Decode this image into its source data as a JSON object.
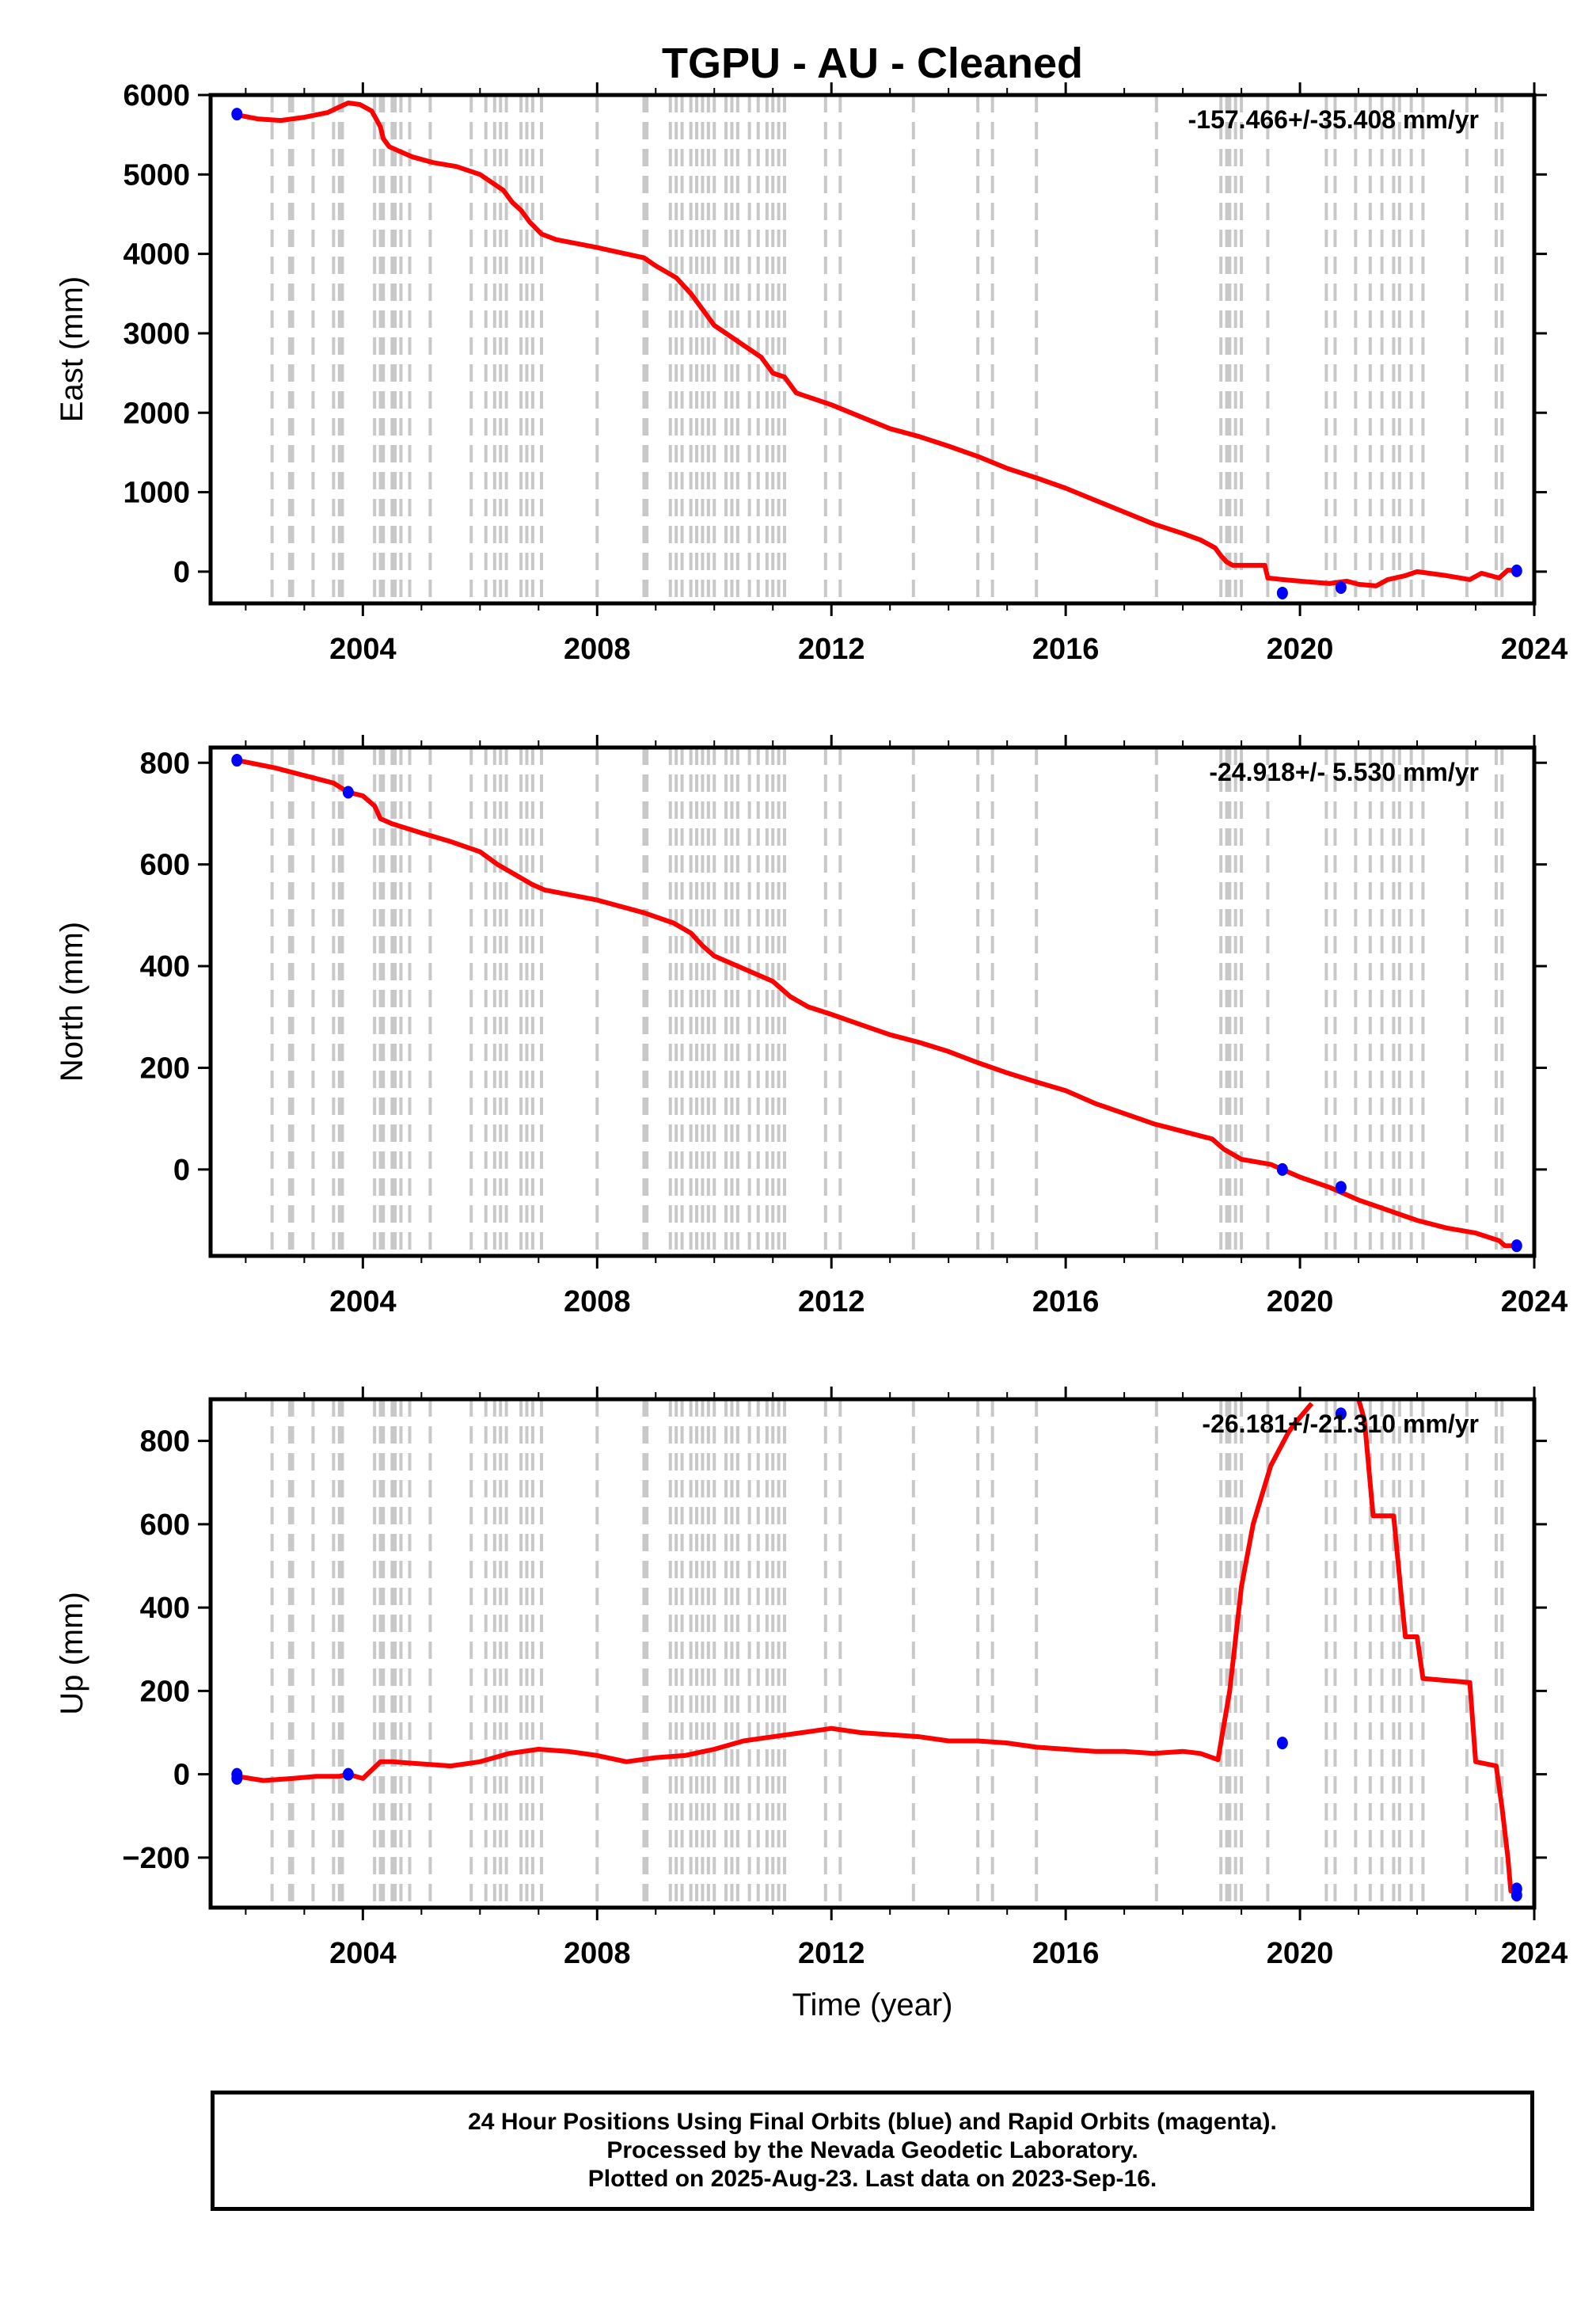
{
  "title": "TGPU  - AU - Cleaned",
  "chart_data": [
    {
      "type": "line",
      "panel": "east",
      "ylabel": "East (mm)",
      "xlabel": "",
      "rate": "-157.466+/-35.408 mm/yr",
      "xlim": [
        2001.4,
        2024.0
      ],
      "ylim": [
        -400,
        6000
      ],
      "yticks": [
        0,
        1000,
        2000,
        3000,
        4000,
        5000,
        6000
      ],
      "xticks": [
        2004,
        2008,
        2012,
        2016,
        2020,
        2024
      ],
      "series": [
        {
          "color": "#ff0000",
          "x": [
            2001.85,
            2002.2,
            2002.6,
            2003.0,
            2003.4,
            2003.6,
            2003.75,
            2003.95,
            2004.15,
            2004.3,
            2004.35,
            2004.45,
            2004.6,
            2004.85,
            2005.2,
            2005.6,
            2006.0,
            2006.2,
            2006.4,
            2006.55,
            2006.7,
            2006.85,
            2007.05,
            2007.3,
            2008.0,
            2008.8,
            2009.0,
            2009.35,
            2009.6,
            2009.8,
            2010.0,
            2010.2,
            2010.5,
            2010.8,
            2011.0,
            2011.2,
            2011.4,
            2011.6,
            2012.0,
            2012.5,
            2013.0,
            2013.5,
            2014.0,
            2014.5,
            2015.0,
            2015.5,
            2016.0,
            2016.5,
            2017.0,
            2017.5,
            2018.0,
            2018.3,
            2018.55,
            2018.65,
            2018.75,
            2018.85,
            2019.0,
            2019.4,
            2019.45,
            2019.7,
            2020.0,
            2020.5,
            2020.8,
            2021.0,
            2021.3,
            2021.5,
            2021.8,
            2022.0,
            2022.5,
            2022.9,
            2023.1,
            2023.4,
            2023.55,
            2023.7
          ],
          "y": [
            5750,
            5700,
            5680,
            5720,
            5780,
            5850,
            5900,
            5880,
            5800,
            5600,
            5450,
            5350,
            5300,
            5220,
            5150,
            5100,
            5000,
            4900,
            4800,
            4650,
            4550,
            4400,
            4250,
            4180,
            4080,
            3950,
            3850,
            3700,
            3500,
            3300,
            3100,
            3000,
            2850,
            2700,
            2500,
            2450,
            2250,
            2200,
            2100,
            1950,
            1800,
            1700,
            1580,
            1450,
            1300,
            1180,
            1050,
            900,
            750,
            600,
            480,
            400,
            300,
            200,
            120,
            80,
            80,
            80,
            -80,
            -100,
            -120,
            -150,
            -120,
            -160,
            -180,
            -100,
            -50,
            0,
            -50,
            -100,
            -20,
            -80,
            20,
            10
          ]
        }
      ],
      "points": {
        "color": "#0000ff",
        "x": [
          2001.85,
          2019.7,
          2020.7,
          2023.7
        ],
        "y": [
          5760,
          -270,
          -200,
          10
        ]
      }
    },
    {
      "type": "line",
      "panel": "north",
      "ylabel": "North (mm)",
      "xlabel": "",
      "rate": "-24.918+/- 5.530 mm/yr",
      "xlim": [
        2001.4,
        2024.0
      ],
      "ylim": [
        -170,
        830
      ],
      "yticks": [
        0,
        200,
        400,
        600,
        800
      ],
      "xticks": [
        2004,
        2008,
        2012,
        2016,
        2020,
        2024
      ],
      "series": [
        {
          "color": "#ff0000",
          "x": [
            2001.85,
            2002.5,
            2003.0,
            2003.5,
            2003.75,
            2004.0,
            2004.2,
            2004.3,
            2004.5,
            2005.0,
            2005.5,
            2006.0,
            2006.3,
            2006.6,
            2006.9,
            2007.1,
            2008.0,
            2008.8,
            2009.3,
            2009.6,
            2009.8,
            2010.0,
            2010.5,
            2011.0,
            2011.3,
            2011.6,
            2012.0,
            2012.5,
            2013.0,
            2013.5,
            2014.0,
            2014.5,
            2015.0,
            2015.5,
            2016.0,
            2016.5,
            2017.0,
            2017.5,
            2018.0,
            2018.5,
            2018.7,
            2019.0,
            2019.5,
            2019.7,
            2020.0,
            2020.5,
            2021.0,
            2021.5,
            2022.0,
            2022.5,
            2023.0,
            2023.4,
            2023.5,
            2023.7
          ],
          "y": [
            805,
            790,
            775,
            760,
            742,
            735,
            715,
            690,
            680,
            662,
            645,
            625,
            600,
            580,
            560,
            550,
            530,
            505,
            485,
            465,
            440,
            420,
            395,
            370,
            340,
            320,
            305,
            285,
            265,
            250,
            232,
            210,
            190,
            172,
            155,
            130,
            110,
            90,
            75,
            60,
            40,
            20,
            10,
            0,
            -15,
            -35,
            -60,
            -80,
            -100,
            -115,
            -125,
            -140,
            -150,
            -150
          ]
        }
      ],
      "points": {
        "color": "#0000ff",
        "x": [
          2001.85,
          2003.75,
          2019.7,
          2020.7,
          2023.7
        ],
        "y": [
          805,
          742,
          0,
          -35,
          -150
        ]
      }
    },
    {
      "type": "line",
      "panel": "up",
      "ylabel": "Up (mm)",
      "xlabel": "Time (year)",
      "rate": "-26.181+/-21.310 mm/yr",
      "xlim": [
        2001.4,
        2024.0
      ],
      "ylim": [
        -320,
        900
      ],
      "yticks": [
        -200,
        0,
        200,
        400,
        600,
        800
      ],
      "xticks": [
        2004,
        2008,
        2012,
        2016,
        2020,
        2024
      ],
      "series": [
        {
          "color": "#ff0000",
          "x": [
            2001.85,
            2002.3,
            2002.8,
            2003.2,
            2003.6,
            2003.75,
            2004.0,
            2004.3,
            2004.5,
            2005.0,
            2005.5,
            2006.0,
            2006.5,
            2007.0,
            2007.5,
            2008.0,
            2008.5,
            2009.0,
            2009.5,
            2010.0,
            2010.5,
            2011.0,
            2011.5,
            2012.0,
            2012.5,
            2013.0,
            2013.5,
            2014.0,
            2014.5,
            2015.0,
            2015.5,
            2016.0,
            2016.5,
            2017.0,
            2017.5,
            2018.0,
            2018.3,
            2018.6,
            2018.8,
            2019.0,
            2019.2,
            2019.5,
            2019.8,
            2019.9,
            2020.2
          ],
          "y": [
            -5,
            -15,
            -10,
            -5,
            -5,
            0,
            -10,
            30,
            30,
            25,
            20,
            30,
            50,
            60,
            55,
            45,
            30,
            40,
            45,
            60,
            80,
            90,
            100,
            110,
            100,
            95,
            90,
            80,
            80,
            75,
            65,
            60,
            55,
            55,
            50,
            55,
            50,
            35,
            200,
            450,
            600,
            740,
            820,
            840,
            890
          ]
        },
        {
          "color": "#ff0000",
          "x": [
            2021.0,
            2021.1,
            2021.25,
            2021.6,
            2021.75,
            2021.8,
            2022.0,
            2022.1,
            2022.9,
            2023.0,
            2023.35,
            2023.45,
            2023.55,
            2023.6,
            2023.7
          ],
          "y": [
            900,
            850,
            620,
            620,
            400,
            330,
            330,
            230,
            220,
            30,
            20,
            -80,
            -200,
            -280,
            -280
          ]
        }
      ],
      "points": {
        "color": "#0000ff",
        "x": [
          2001.85,
          2001.85,
          2003.75,
          2019.7,
          2020.7,
          2023.7,
          2023.7
        ],
        "y": [
          0,
          -10,
          0,
          75,
          865,
          -275,
          -290
        ]
      }
    }
  ],
  "event_lines": [
    2002.45,
    2002.75,
    2002.8,
    2003.15,
    2003.5,
    2003.6,
    2003.65,
    2004.2,
    2004.3,
    2004.35,
    2004.5,
    2004.55,
    2004.65,
    2004.8,
    2005.15,
    2005.85,
    2006.1,
    2006.25,
    2006.35,
    2006.45,
    2006.7,
    2006.8,
    2006.9,
    2007.05,
    2008.0,
    2008.8,
    2008.85,
    2009.25,
    2009.35,
    2009.45,
    2009.6,
    2009.7,
    2009.8,
    2009.9,
    2010.0,
    2010.2,
    2010.3,
    2010.4,
    2010.6,
    2010.75,
    2010.9,
    2011.0,
    2011.1,
    2011.2,
    2011.9,
    2012.15,
    2013.4,
    2014.5,
    2014.75,
    2015.5,
    2017.55,
    2018.65,
    2018.75,
    2018.8,
    2018.9,
    2019.0,
    2019.45,
    2020.45,
    2020.6,
    2020.95,
    2021.2,
    2021.4,
    2021.6,
    2021.7,
    2021.9,
    2022.1,
    2022.85,
    2023.35,
    2023.45
  ],
  "footer": {
    "line1": "24 Hour Positions Using Final Orbits (blue) and Rapid Orbits (magenta).",
    "line2": "Processed by the Nevada Geodetic Laboratory.",
    "line3": "Plotted on 2025-Aug-23. Last data on 2023-Sep-16."
  }
}
